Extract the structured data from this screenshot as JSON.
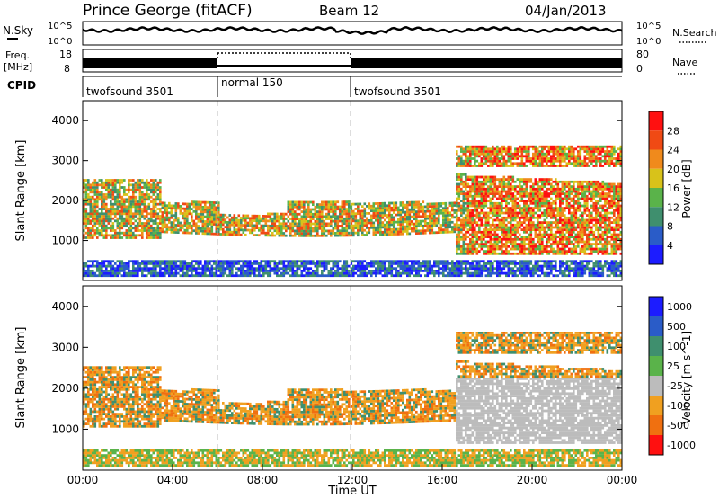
{
  "header": {
    "station": "Prince George (fitACF)",
    "beam": "Beam 12",
    "date": "04/Jan/2013"
  },
  "top_panels": {
    "nsky": {
      "label": "N.Sky",
      "ticks": [
        "10^5",
        "10^0"
      ],
      "right_label": "N.Search",
      "right_ticks": [
        "10^5",
        "10^0"
      ]
    },
    "freq": {
      "label_line1": "Freq.",
      "label_line2": "[MHz]",
      "ticks": [
        "18",
        "8"
      ],
      "right_label": "Nave",
      "right_ticks": [
        "80",
        "0"
      ]
    },
    "cpid": {
      "label": "CPID",
      "segments": [
        {
          "label": "twofsound 3501",
          "start": 0,
          "end": 6
        },
        {
          "label": "normal 150",
          "start": 6,
          "end": 12
        },
        {
          "label": "twofsound 3501",
          "start": 12,
          "end": 24
        }
      ]
    }
  },
  "chart_data": [
    {
      "type": "heatmap",
      "ylabel": "Slant Range [km]",
      "ylim": [
        0,
        4500
      ],
      "y_ticks": [
        "1000",
        "2000",
        "3000",
        "4000"
      ],
      "xlim": [
        0,
        24
      ],
      "colorbar_label": "Power [dB]",
      "colorbar_ticks": [
        "4",
        "8",
        "12",
        "16",
        "20",
        "24",
        "28"
      ],
      "colors": [
        "#1c1cff",
        "#2a5cc8",
        "#3f8f6e",
        "#5ab34a",
        "#d8c21a",
        "#f08a1c",
        "#f04a14",
        "#ff1010"
      ]
    },
    {
      "type": "heatmap",
      "ylabel": "Slant Range [km]",
      "ylim": [
        0,
        4500
      ],
      "y_ticks": [
        "1000",
        "2000",
        "3000",
        "4000"
      ],
      "xlim": [
        0,
        24
      ],
      "colorbar_label": "Velocity [m s^-1]",
      "colorbar_ticks": [
        "1000",
        "500",
        "100",
        "25",
        "-25",
        "-100",
        "-500",
        "-1000"
      ],
      "colors": [
        "#1c1cff",
        "#2a5cc8",
        "#3f8f6e",
        "#5ab34a",
        "#bcbcbc",
        "#f0a020",
        "#f07010",
        "#ff1010"
      ]
    }
  ],
  "x_axis": {
    "label": "Time UT",
    "ticks": [
      "00:00",
      "04:00",
      "08:00",
      "12:00",
      "16:00",
      "20:00",
      "00:00"
    ]
  }
}
